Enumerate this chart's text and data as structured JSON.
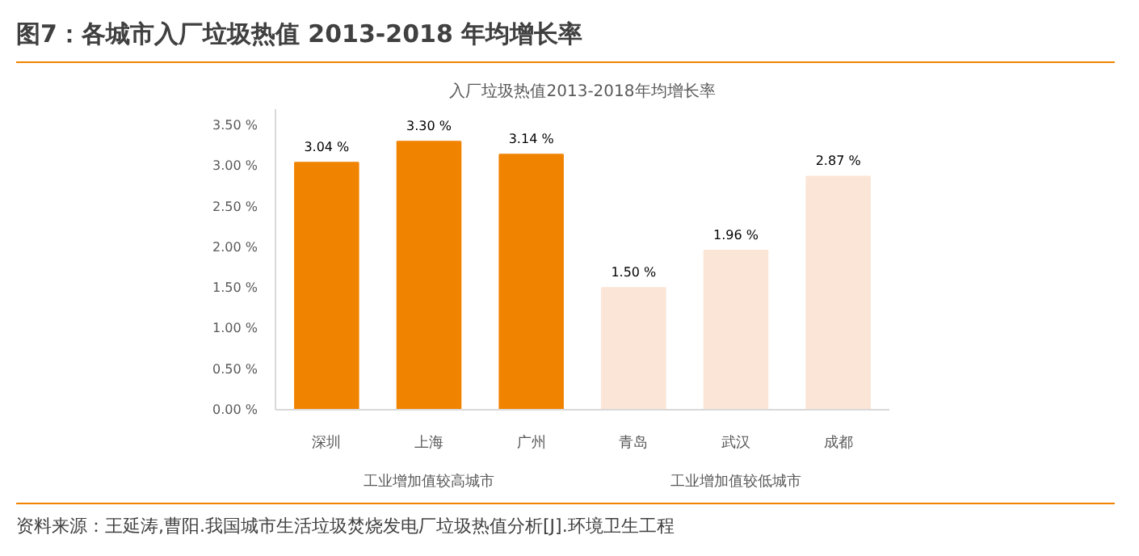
{
  "chart_data": {
    "type": "bar",
    "title": "图7：各城市入厂垃圾热值 2013-2018 年均增长率",
    "subtitle": "入厂垃圾热值2013-2018年均增长率",
    "categories": [
      "深圳",
      "上海",
      "广州",
      "青岛",
      "武汉",
      "成都"
    ],
    "values": [
      3.04,
      3.3,
      3.14,
      1.5,
      1.96,
      2.87
    ],
    "colors": [
      "#f08300",
      "#f08300",
      "#f08300",
      "#fbe5d6",
      "#fbe5d6",
      "#fbe5d6"
    ],
    "value_labels": [
      "3.04 %",
      "3.30 %",
      "3.14 %",
      "1.50 %",
      "1.96 %",
      "2.87 %"
    ],
    "ylim": [
      0,
      3.7
    ],
    "yticks": [
      {
        "value": 0,
        "label": "0.00 %"
      },
      {
        "value": 0.5,
        "label": "0.50 %"
      },
      {
        "value": 1,
        "label": "1.00 %"
      },
      {
        "value": 1.5,
        "label": "1.50 %"
      },
      {
        "value": 2,
        "label": "2.00 %"
      },
      {
        "value": 2.5,
        "label": "2.50 %"
      },
      {
        "value": 3,
        "label": "3.00 %"
      },
      {
        "value": 3.5,
        "label": "3.50 %"
      }
    ],
    "annotations": [
      "工业增加值较高城市",
      "工业增加值较低城市",
      "资料来源：王延涛,曹阳.我国城市生活垃圾焚烧发电厂垃圾热值分析[J].环境卫生工程"
    ],
    "grid": false
  }
}
